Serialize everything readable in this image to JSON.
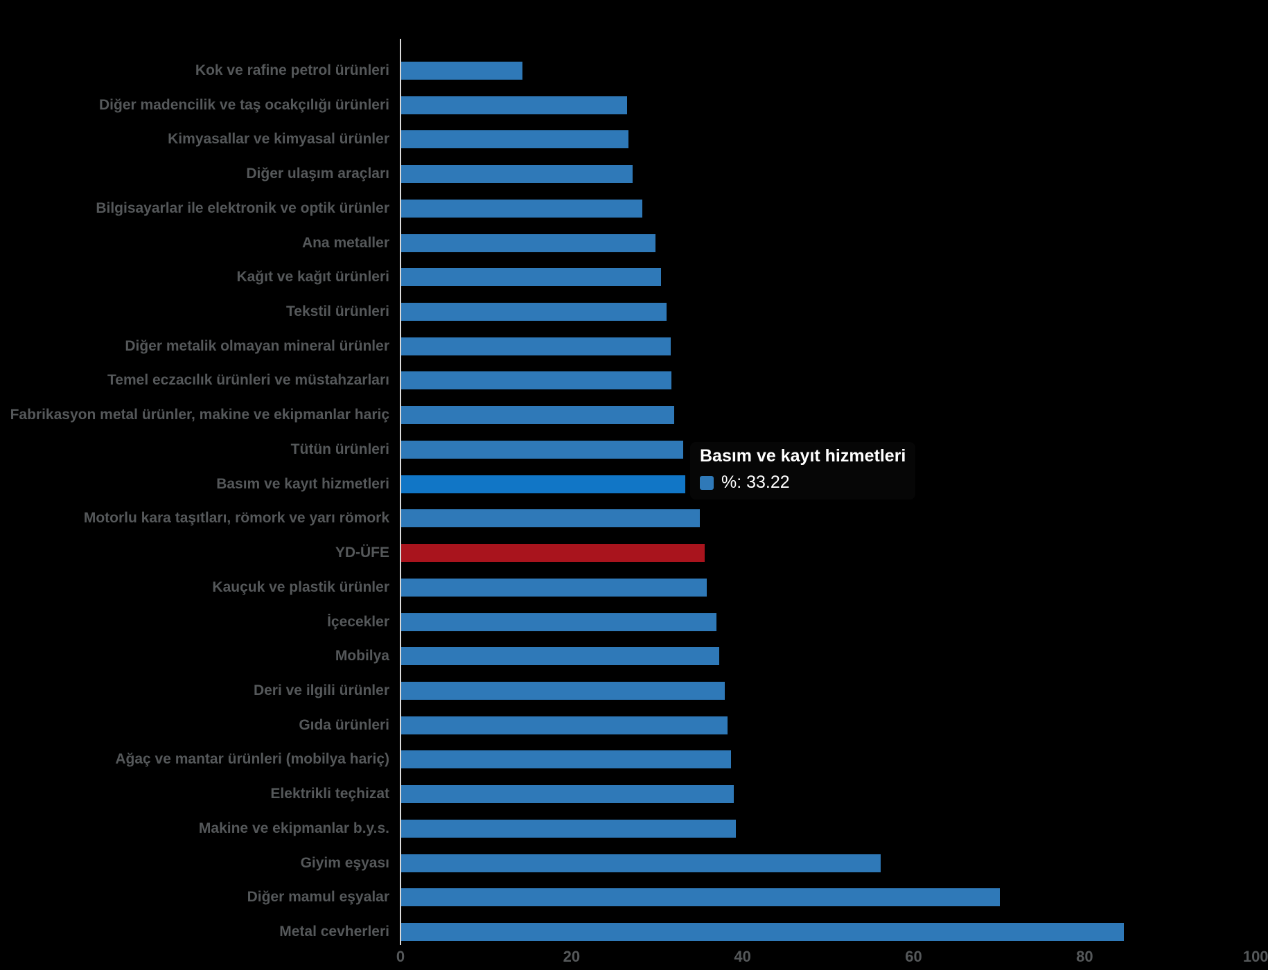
{
  "chart_data": {
    "type": "bar",
    "orientation": "horizontal",
    "title": "",
    "xlabel": "",
    "ylabel": "",
    "unit": "%",
    "xlim": [
      0,
      100
    ],
    "x_ticks": [
      "0",
      "20",
      "40",
      "60",
      "80",
      "100"
    ],
    "grid": false,
    "legend_position": "none",
    "categories": [
      "Kok ve rafine petrol ürünleri",
      "Diğer madencilik ve taş ocakçılığı ürünleri",
      "Kimyasallar ve kimyasal ürünler",
      "Diğer ulaşım araçları",
      "Bilgisayarlar ile elektronik ve optik ürünler",
      "Ana metaller",
      "Kağıt ve kağıt ürünleri",
      "Tekstil ürünleri",
      "Diğer metalik olmayan mineral ürünler",
      "Temel eczacılık ürünleri ve müstahzarları",
      "Fabrikasyon metal ürünler, makine ve ekipmanlar hariç",
      "Tütün ürünleri",
      "Basım ve kayıt hizmetleri",
      "Motorlu kara taşıtları, römork ve yarı römork",
      "YD-ÜFE",
      "Kauçuk ve plastik ürünler",
      "İçecekler",
      "Mobilya",
      "Deri ve ilgili ürünler",
      "Gıda ürünleri",
      "Ağaç ve mantar ürünleri (mobilya hariç)",
      "Elektrikli teçhizat",
      "Makine ve ekipmanlar b.y.s.",
      "Giyim eşyası",
      "Diğer mamul eşyalar",
      "Metal cevherleri"
    ],
    "values": [
      14.2,
      26.4,
      26.6,
      27.1,
      28.2,
      29.7,
      30.4,
      31.0,
      31.5,
      31.6,
      31.9,
      33.0,
      33.22,
      34.9,
      35.5,
      35.7,
      36.9,
      37.2,
      37.8,
      38.2,
      38.6,
      38.9,
      39.1,
      56.1,
      70.0,
      84.5
    ],
    "roles": [
      "normal",
      "normal",
      "normal",
      "normal",
      "normal",
      "normal",
      "normal",
      "normal",
      "normal",
      "normal",
      "normal",
      "normal",
      "hover",
      "normal",
      "index",
      "normal",
      "normal",
      "normal",
      "normal",
      "normal",
      "normal",
      "normal",
      "normal",
      "normal",
      "normal",
      "normal"
    ]
  },
  "tooltip": {
    "title": "Basım ve kayıt hizmetleri",
    "label": "%: 33.22",
    "value": 33.22
  },
  "colors": {
    "background": "#000000",
    "bar": "#2F79B8",
    "bar_hover": "#1176C6",
    "bar_index": "#A9141D",
    "label_text": "#55585A",
    "axis_line": "#D9D9D9",
    "tooltip_text": "#FFFFFF"
  }
}
